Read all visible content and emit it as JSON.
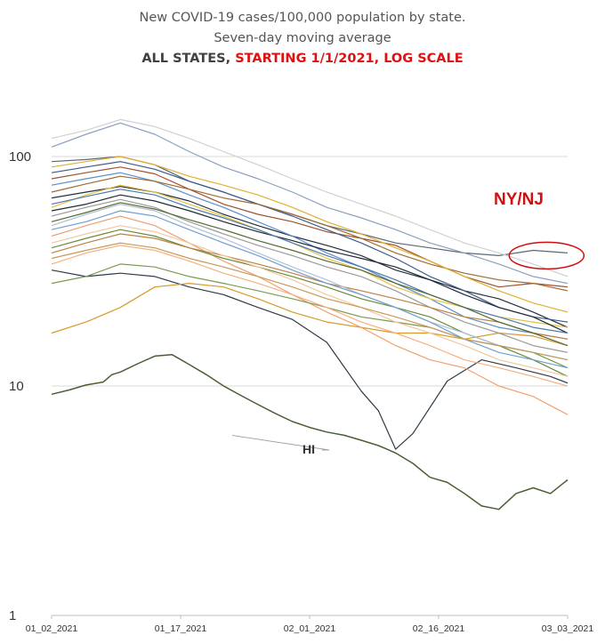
{
  "title_line1": "New COVID-19 cases/100,000 population by state.",
  "title_line2": "Seven-day moving average",
  "title_line3_part1": "ALL STATES,",
  "title_line3_part2": "STARTING 1/1/2021, LOG SCALE",
  "colors": {
    "title_red": "#e01010",
    "hi_line": "#4a5e34",
    "annotation_red": "#d01010"
  },
  "chart_data": {
    "type": "line",
    "title": "New COVID-19 cases/100,000 population by state. Seven-day moving average",
    "subtitle": "ALL STATES, STARTING 1/1/2021, LOG SCALE",
    "xlabel": "",
    "ylabel": "",
    "x_ticks": [
      "01_02_2021",
      "01_17_2021",
      "02_01_2021",
      "02_16_2021",
      "03_03_2021"
    ],
    "y_ticks": [
      "1",
      "10",
      "100"
    ],
    "y_scale": "log",
    "ylim": [
      1,
      200
    ],
    "x_range_days": [
      0,
      60
    ],
    "grid": "horizontal",
    "annotations": [
      {
        "text": "NY/NJ",
        "color": "#d01010",
        "target_day": 59,
        "target_value": 37
      },
      {
        "text": "HI",
        "color": "#333333",
        "target_day": 21,
        "target_value": 6.2
      }
    ],
    "series": [
      {
        "name": "HI",
        "highlight": true,
        "color": "#4a5e34",
        "x": [
          0,
          2,
          4,
          6,
          7,
          8,
          10,
          12,
          14,
          16,
          18,
          20,
          22,
          24,
          26,
          28,
          30,
          32,
          34,
          36,
          38,
          39,
          40,
          42,
          44,
          46,
          48,
          50,
          52,
          54,
          56,
          58,
          60
        ],
        "values": [
          9.2,
          9.6,
          10.1,
          10.4,
          11.2,
          11.5,
          12.5,
          13.5,
          13.7,
          12.4,
          11.2,
          10.0,
          9.1,
          8.3,
          7.6,
          7.0,
          6.6,
          6.3,
          6.1,
          5.8,
          5.5,
          5.3,
          5.1,
          4.6,
          4.0,
          3.8,
          3.4,
          3.0,
          2.9,
          3.4,
          3.6,
          3.4,
          3.9
        ]
      },
      {
        "name": "",
        "color": "#2f3b48",
        "x": [
          0,
          4,
          8,
          12,
          16,
          20,
          24,
          28,
          32,
          36,
          38,
          40,
          42,
          46,
          50,
          54,
          58,
          60
        ],
        "values": [
          32,
          30,
          31,
          30,
          27,
          25,
          22,
          19.5,
          15.5,
          9.5,
          7.8,
          5.3,
          6.2,
          10.5,
          13,
          12,
          11,
          10.3
        ]
      },
      {
        "name": "",
        "color": "#5c6873",
        "x": [
          0,
          4,
          8,
          12,
          16,
          20,
          24,
          28,
          32,
          36,
          40,
          44,
          48,
          52,
          56,
          60
        ],
        "values": [
          95,
          97,
          100,
          92,
          78,
          70,
          62,
          56,
          50,
          46,
          42,
          40,
          38,
          37,
          39,
          38
        ]
      },
      {
        "name": "",
        "color": "#243040",
        "x": [
          0,
          4,
          8,
          12,
          16,
          20,
          24,
          28,
          32,
          36,
          40,
          44,
          48,
          52,
          56,
          60
        ],
        "values": [
          66,
          70,
          74,
          70,
          64,
          56,
          50,
          45,
          41,
          37,
          32,
          29,
          26,
          24,
          21,
          18
        ]
      },
      {
        "name": "",
        "color": "#a0522d",
        "x": [
          0,
          4,
          8,
          12,
          16,
          20,
          24,
          28,
          32,
          36,
          40,
          44,
          48,
          52,
          56,
          60
        ],
        "values": [
          80,
          85,
          90,
          84,
          72,
          62,
          56,
          52,
          47,
          44,
          41,
          35,
          30,
          27,
          28,
          27
        ]
      },
      {
        "name": "",
        "color": "#d89a2b",
        "x": [
          0,
          4,
          8,
          12,
          16,
          20,
          24,
          28,
          32,
          36,
          40,
          44,
          48,
          52,
          56,
          60
        ],
        "values": [
          17,
          19,
          22,
          27,
          28,
          27,
          24,
          21,
          19,
          18,
          17,
          17,
          16,
          17,
          16.5,
          15
        ]
      },
      {
        "name": "",
        "color": "#8aa0c0",
        "x": [
          0,
          4,
          8,
          12,
          16,
          20,
          24,
          28,
          32,
          36,
          40,
          44,
          48,
          52,
          56,
          60
        ],
        "values": [
          110,
          125,
          140,
          125,
          105,
          90,
          80,
          70,
          60,
          54,
          48,
          42,
          38,
          34,
          30,
          28
        ]
      },
      {
        "name": "",
        "color": "#5b8fc9",
        "x": [
          0,
          4,
          8,
          12,
          16,
          20,
          24,
          28,
          32,
          36,
          40,
          44,
          48,
          52,
          56,
          60
        ],
        "values": [
          75,
          80,
          85,
          78,
          68,
          60,
          52,
          45,
          38,
          33,
          28,
          24,
          20,
          18,
          17,
          16
        ]
      },
      {
        "name": "",
        "color": "#f0a070",
        "x": [
          0,
          4,
          8,
          12,
          16,
          20,
          24,
          28,
          32,
          36,
          40,
          44,
          48,
          52,
          56,
          60
        ],
        "values": [
          45,
          50,
          55,
          50,
          42,
          35,
          30,
          25,
          21,
          18,
          15,
          13,
          12,
          10,
          9,
          7.5
        ]
      },
      {
        "name": "",
        "color": "#e6c040",
        "x": [
          0,
          4,
          8,
          12,
          16,
          20,
          24,
          28,
          32,
          36,
          40,
          44,
          48,
          52,
          56,
          60
        ],
        "values": [
          60,
          68,
          75,
          70,
          62,
          55,
          48,
          42,
          36,
          32,
          27,
          24,
          22,
          20,
          19,
          18
        ]
      },
      {
        "name": "",
        "color": "#6a8a3a",
        "x": [
          0,
          4,
          8,
          12,
          16,
          20,
          24,
          28,
          32,
          36,
          40,
          44,
          48,
          52,
          56,
          60
        ],
        "values": [
          40,
          44,
          48,
          45,
          40,
          36,
          33,
          30,
          27,
          24,
          22,
          20,
          17,
          15,
          13,
          11
        ]
      },
      {
        "name": "",
        "color": "#9a9a9a",
        "x": [
          0,
          4,
          8,
          12,
          16,
          20,
          24,
          28,
          32,
          36,
          40,
          44,
          48,
          52,
          56,
          60
        ],
        "values": [
          55,
          60,
          65,
          60,
          52,
          46,
          41,
          37,
          33,
          30,
          26,
          22,
          19,
          17,
          15,
          14
        ]
      },
      {
        "name": "",
        "color": "#3c5a8a",
        "x": [
          0,
          4,
          8,
          12,
          16,
          20,
          24,
          28,
          32,
          36,
          40,
          44,
          48,
          52,
          56,
          60
        ],
        "values": [
          85,
          90,
          95,
          88,
          78,
          70,
          62,
          55,
          48,
          42,
          36,
          30,
          26,
          22,
          20,
          19
        ]
      },
      {
        "name": "",
        "color": "#c08040",
        "x": [
          0,
          4,
          8,
          12,
          16,
          20,
          24,
          28,
          32,
          36,
          40,
          44,
          48,
          52,
          56,
          60
        ],
        "values": [
          38,
          42,
          46,
          44,
          40,
          37,
          34,
          31,
          28,
          26,
          24,
          22,
          20,
          19,
          17,
          16
        ]
      },
      {
        "name": "",
        "color": "#b0c0d8",
        "x": [
          0,
          4,
          8,
          12,
          16,
          20,
          24,
          28,
          32,
          36,
          40,
          44,
          48,
          52,
          56,
          60
        ],
        "values": [
          50,
          56,
          62,
          58,
          50,
          44,
          38,
          33,
          29,
          25,
          22,
          19,
          17,
          15,
          14,
          13
        ]
      },
      {
        "name": "",
        "color": "#7a9a50",
        "x": [
          0,
          4,
          8,
          12,
          16,
          20,
          24,
          28,
          32,
          36,
          40,
          44,
          48,
          52,
          56,
          60
        ],
        "values": [
          28,
          30,
          34,
          33,
          30,
          28,
          26,
          24,
          22,
          20,
          19,
          18,
          16,
          15,
          14,
          12
        ]
      },
      {
        "name": "",
        "color": "#f2c8a0",
        "x": [
          0,
          4,
          8,
          12,
          16,
          20,
          24,
          28,
          32,
          36,
          40,
          44,
          48,
          52,
          56,
          60
        ],
        "values": [
          42,
          46,
          50,
          47,
          42,
          37,
          33,
          29,
          25,
          22,
          19,
          17,
          15,
          13,
          12,
          11
        ]
      },
      {
        "name": "",
        "color": "#1f2a36",
        "x": [
          0,
          4,
          8,
          12,
          16,
          20,
          24,
          28,
          32,
          36,
          40,
          44,
          48,
          52,
          56,
          60
        ],
        "values": [
          58,
          62,
          68,
          64,
          58,
          52,
          47,
          43,
          39,
          36,
          33,
          29,
          25,
          22,
          20,
          17
        ]
      },
      {
        "name": "",
        "color": "#a06a30",
        "x": [
          0,
          4,
          8,
          12,
          16,
          20,
          24,
          28,
          32,
          36,
          40,
          44,
          48,
          52,
          56,
          60
        ],
        "values": [
          70,
          76,
          82,
          78,
          72,
          66,
          62,
          56,
          50,
          44,
          38,
          34,
          31,
          29,
          28,
          26
        ]
      },
      {
        "name": "",
        "color": "#6fa0d0",
        "x": [
          0,
          4,
          8,
          12,
          16,
          20,
          24,
          28,
          32,
          36,
          40,
          44,
          48,
          52,
          56,
          60
        ],
        "values": [
          48,
          52,
          58,
          55,
          48,
          42,
          37,
          32,
          28,
          25,
          22,
          19,
          16,
          14,
          13,
          12
        ]
      },
      {
        "name": "",
        "color": "#d0d0d0",
        "x": [
          0,
          4,
          8,
          12,
          16,
          20,
          24,
          28,
          32,
          36,
          40,
          44,
          48,
          52,
          56,
          60
        ],
        "values": [
          120,
          130,
          145,
          135,
          120,
          105,
          92,
          80,
          70,
          62,
          55,
          48,
          42,
          38,
          34,
          30
        ]
      },
      {
        "name": "",
        "color": "#c89858",
        "x": [
          0,
          4,
          8,
          12,
          16,
          20,
          24,
          28,
          32,
          36,
          40,
          44,
          48,
          52,
          56,
          60
        ],
        "values": [
          36,
          39,
          42,
          40,
          36,
          33,
          30,
          27,
          24,
          22,
          20,
          18,
          16,
          15,
          14,
          13
        ]
      },
      {
        "name": "",
        "color": "#e0b030",
        "x": [
          0,
          4,
          8,
          12,
          16,
          20,
          24,
          28,
          32,
          36,
          40,
          44,
          48,
          52,
          56,
          60
        ],
        "values": [
          90,
          95,
          100,
          92,
          82,
          75,
          68,
          60,
          52,
          46,
          40,
          35,
          30,
          26,
          23,
          21
        ]
      },
      {
        "name": "",
        "color": "#4a7ab0",
        "x": [
          0,
          4,
          8,
          12,
          16,
          20,
          24,
          28,
          32,
          36,
          40,
          44,
          48,
          52,
          56,
          60
        ],
        "values": [
          62,
          67,
          72,
          68,
          60,
          54,
          48,
          42,
          37,
          33,
          29,
          25,
          22,
          20,
          18,
          17
        ]
      },
      {
        "name": "",
        "color": "#f5b080",
        "x": [
          0,
          4,
          8,
          12,
          16,
          20,
          24,
          28,
          32,
          36,
          40,
          44,
          48,
          52,
          56,
          60
        ],
        "values": [
          34,
          38,
          41,
          39,
          35,
          31,
          28,
          25,
          22,
          19,
          17,
          15,
          13,
          12,
          11,
          10
        ]
      },
      {
        "name": "",
        "color": "#556b2f",
        "x": [
          0,
          4,
          8,
          12,
          16,
          20,
          24,
          28,
          32,
          36,
          40,
          44,
          48,
          52,
          56,
          60
        ],
        "values": [
          52,
          57,
          63,
          59,
          53,
          48,
          43,
          39,
          35,
          32,
          28,
          25,
          22,
          19,
          17,
          15
        ]
      }
    ]
  }
}
